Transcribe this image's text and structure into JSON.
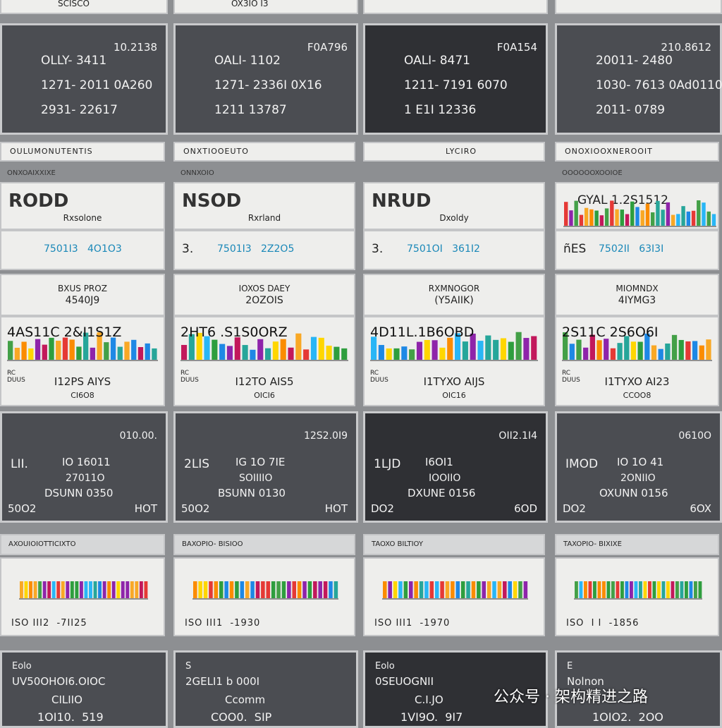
{
  "top_strip": [
    "SCISCO",
    "OX3IO I3",
    "",
    ""
  ],
  "row1": [
    {
      "corner": "10.2138",
      "lines": [
        "OLLY- 3411",
        "1271- 2011 0A260",
        "2931- 22617"
      ],
      "strip": "OULUMONUTENTIS"
    },
    {
      "corner": "F0A796",
      "lines": [
        "OALI- 1102",
        "1271- 2336I 0X16",
        "1211 13787"
      ],
      "strip": "ONXTIOOEUTO"
    },
    {
      "corner": "F0A154",
      "lines": [
        "OALI- 8471",
        "1211- 7191 6070",
        "1 E1I 12336"
      ],
      "strip": "LYCIRO"
    },
    {
      "corner": "210.8612",
      "lines": [
        "20011- 2480",
        "1030- 7613 0Ad0110",
        "2011- 0789"
      ],
      "strip": "ONOXIOOXNEROOIT"
    }
  ],
  "row2_headers": [
    "ONXOAIXXIXE",
    "ONNXOIO",
    "",
    "OOOOOOXOOIOE"
  ],
  "row2": [
    {
      "title": "RODD",
      "subtitle": "Rxsolone",
      "left": "",
      "numbers": "7501I3   4O1O3"
    },
    {
      "title": "NSOD",
      "subtitle": "Rxrland",
      "left": "3.",
      "numbers": "7501I3   2Z2O5"
    },
    {
      "title": "NRUD",
      "subtitle": "Dxoldy",
      "left": "3.",
      "numbers": "7501OI   361I2"
    },
    {
      "title": "GYAL 1.2S1512",
      "subtitle": "",
      "left": "ñES",
      "numbers": "7502II   63I3I"
    }
  ],
  "row3": [
    {
      "title": "BXUS PROZ",
      "subtitle": "4540J9",
      "big": "4AS11C 2&I1S1Z",
      "tag": "RC DUUS",
      "bottom": "I12PS AIYS",
      "foot": "CI6O8"
    },
    {
      "title": "IOXOS DAEY",
      "subtitle": "2OZOIS",
      "big": "2HT6 .S1S0ORZ",
      "tag": "RC DUUS",
      "bottom": "I12TO AIS5",
      "foot": "OICI6"
    },
    {
      "title": "RXMNOGOR",
      "subtitle": "(Y5AIIK)",
      "big": "4D11L.1B6OBD",
      "tag": "RC DUUS",
      "bottom": "I1TYXO AIJS",
      "foot": "OIC16"
    },
    {
      "title": "MIOMNDX",
      "subtitle": "4IYMG3",
      "big": "2S11C 2S6O6I",
      "tag": "RC DUUS",
      "bottom": "I1TYXO AI23",
      "foot": "CCOO8"
    }
  ],
  "row4": [
    {
      "corner": "010.00.",
      "a": "LII.",
      "b": "IO 16011",
      "c": "27011O",
      "d": "DSUNN 0350",
      "bl": "50O2",
      "br": "HOT"
    },
    {
      "corner": "12S2.0I9",
      "a": "2LIS",
      "b": "IG 1O 7IE",
      "c": "SOIIIIO",
      "d": "BSUNN 0130",
      "bl": "50O2",
      "br": "HOT"
    },
    {
      "corner": "OII2.1I4",
      "a": "1LJD",
      "b": "I6OI1",
      "c": "IOOIIO",
      "d": "DXUNE 0156",
      "bl": "DO2",
      "br": "6OD"
    },
    {
      "corner": "0610O",
      "a": "IMOD",
      "b": "IO 1O 41",
      "c": "2ONIIO",
      "d": "OXUNN 0156",
      "bl": "DO2",
      "br": "6OX"
    }
  ],
  "row5": [
    {
      "header": "AXOUIOIOTTICIXTO",
      "bottom": "ISO III2  -7II25"
    },
    {
      "header": "BAXOPIO- BISIOO",
      "bottom": "ISO III1  -1930"
    },
    {
      "header": "TAOXO BILTIOY",
      "bottom": "ISO III1  -1970"
    },
    {
      "header": "TAXOPIO- BIXIXE",
      "bottom": "ISO  I I  -1856"
    }
  ],
  "row6": [
    {
      "top": "Eolo",
      "mid": "UV50OHOI6.OIOC",
      "low": "CILIIO",
      "base": "1OI10.  519"
    },
    {
      "top": "S",
      "mid": "2GELI1 b 000I",
      "low": "Ccomm",
      "base": "COO0.  SIP"
    },
    {
      "top": "Eolo",
      "mid": "0SEUOGNII",
      "low": "C.I.JO",
      "base": "1VI9O.  9I7"
    },
    {
      "top": "E",
      "mid": "Nolnon",
      "low": "",
      "base": "1OIO2.  2OO"
    }
  ],
  "watermark": "公众号 · 架构精进之路"
}
